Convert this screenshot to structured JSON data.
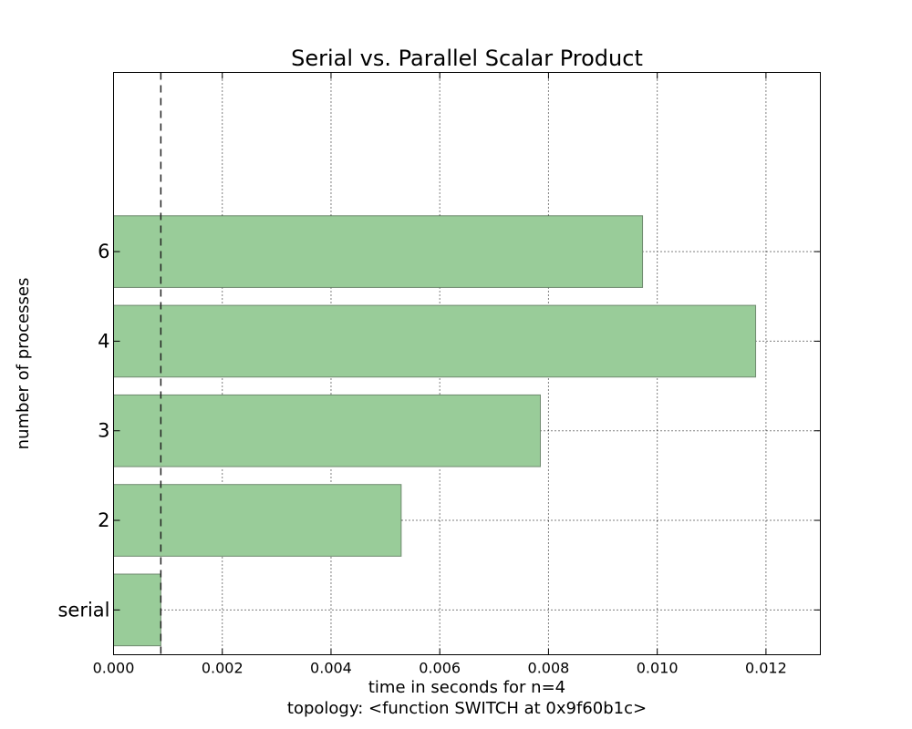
{
  "chart_data": {
    "type": "bar",
    "orientation": "horizontal",
    "title": "Serial vs. Parallel Scalar Product",
    "xlabel": "time in seconds for n=4",
    "xlabel2": "topology: <function SWITCH at 0x9f60b1c>",
    "ylabel": "number of processes",
    "categories": [
      "serial",
      "2",
      "3",
      "4",
      "6"
    ],
    "values": [
      0.00087,
      0.00529,
      0.00785,
      0.01181,
      0.00973
    ],
    "xlim": [
      0,
      0.013
    ],
    "xticks": [
      0.0,
      0.002,
      0.004,
      0.006,
      0.008,
      0.01,
      0.012
    ],
    "xtick_labels": [
      "0.000",
      "0.002",
      "0.004",
      "0.006",
      "0.008",
      "0.010",
      "0.012"
    ],
    "reference_line": {
      "value": 0.00087,
      "style": "dashed"
    },
    "grid": true,
    "colors": {
      "bar_fill": "#99cc99",
      "bar_stroke": "#6f8a6f"
    }
  }
}
